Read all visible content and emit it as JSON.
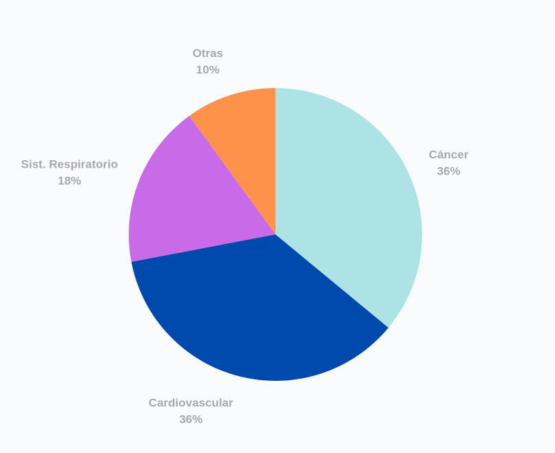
{
  "chart_data": {
    "type": "pie",
    "title": "",
    "start_angle_deg": 0,
    "direction": "clockwise",
    "slices": [
      {
        "label": "Cáncer",
        "value": 36,
        "value_label": "36%",
        "color": "#ade4e3"
      },
      {
        "label": "Cardiovascular",
        "value": 36,
        "value_label": "36%",
        "color": "#004aad"
      },
      {
        "label": "Sist. Respiratorio",
        "value": 18,
        "value_label": "18%",
        "color": "#c96be8"
      },
      {
        "label": "Otras",
        "value": 10,
        "value_label": "10%",
        "color": "#ff914d"
      }
    ],
    "label_color": "#a9a9ad",
    "background": "#f9fafc"
  }
}
